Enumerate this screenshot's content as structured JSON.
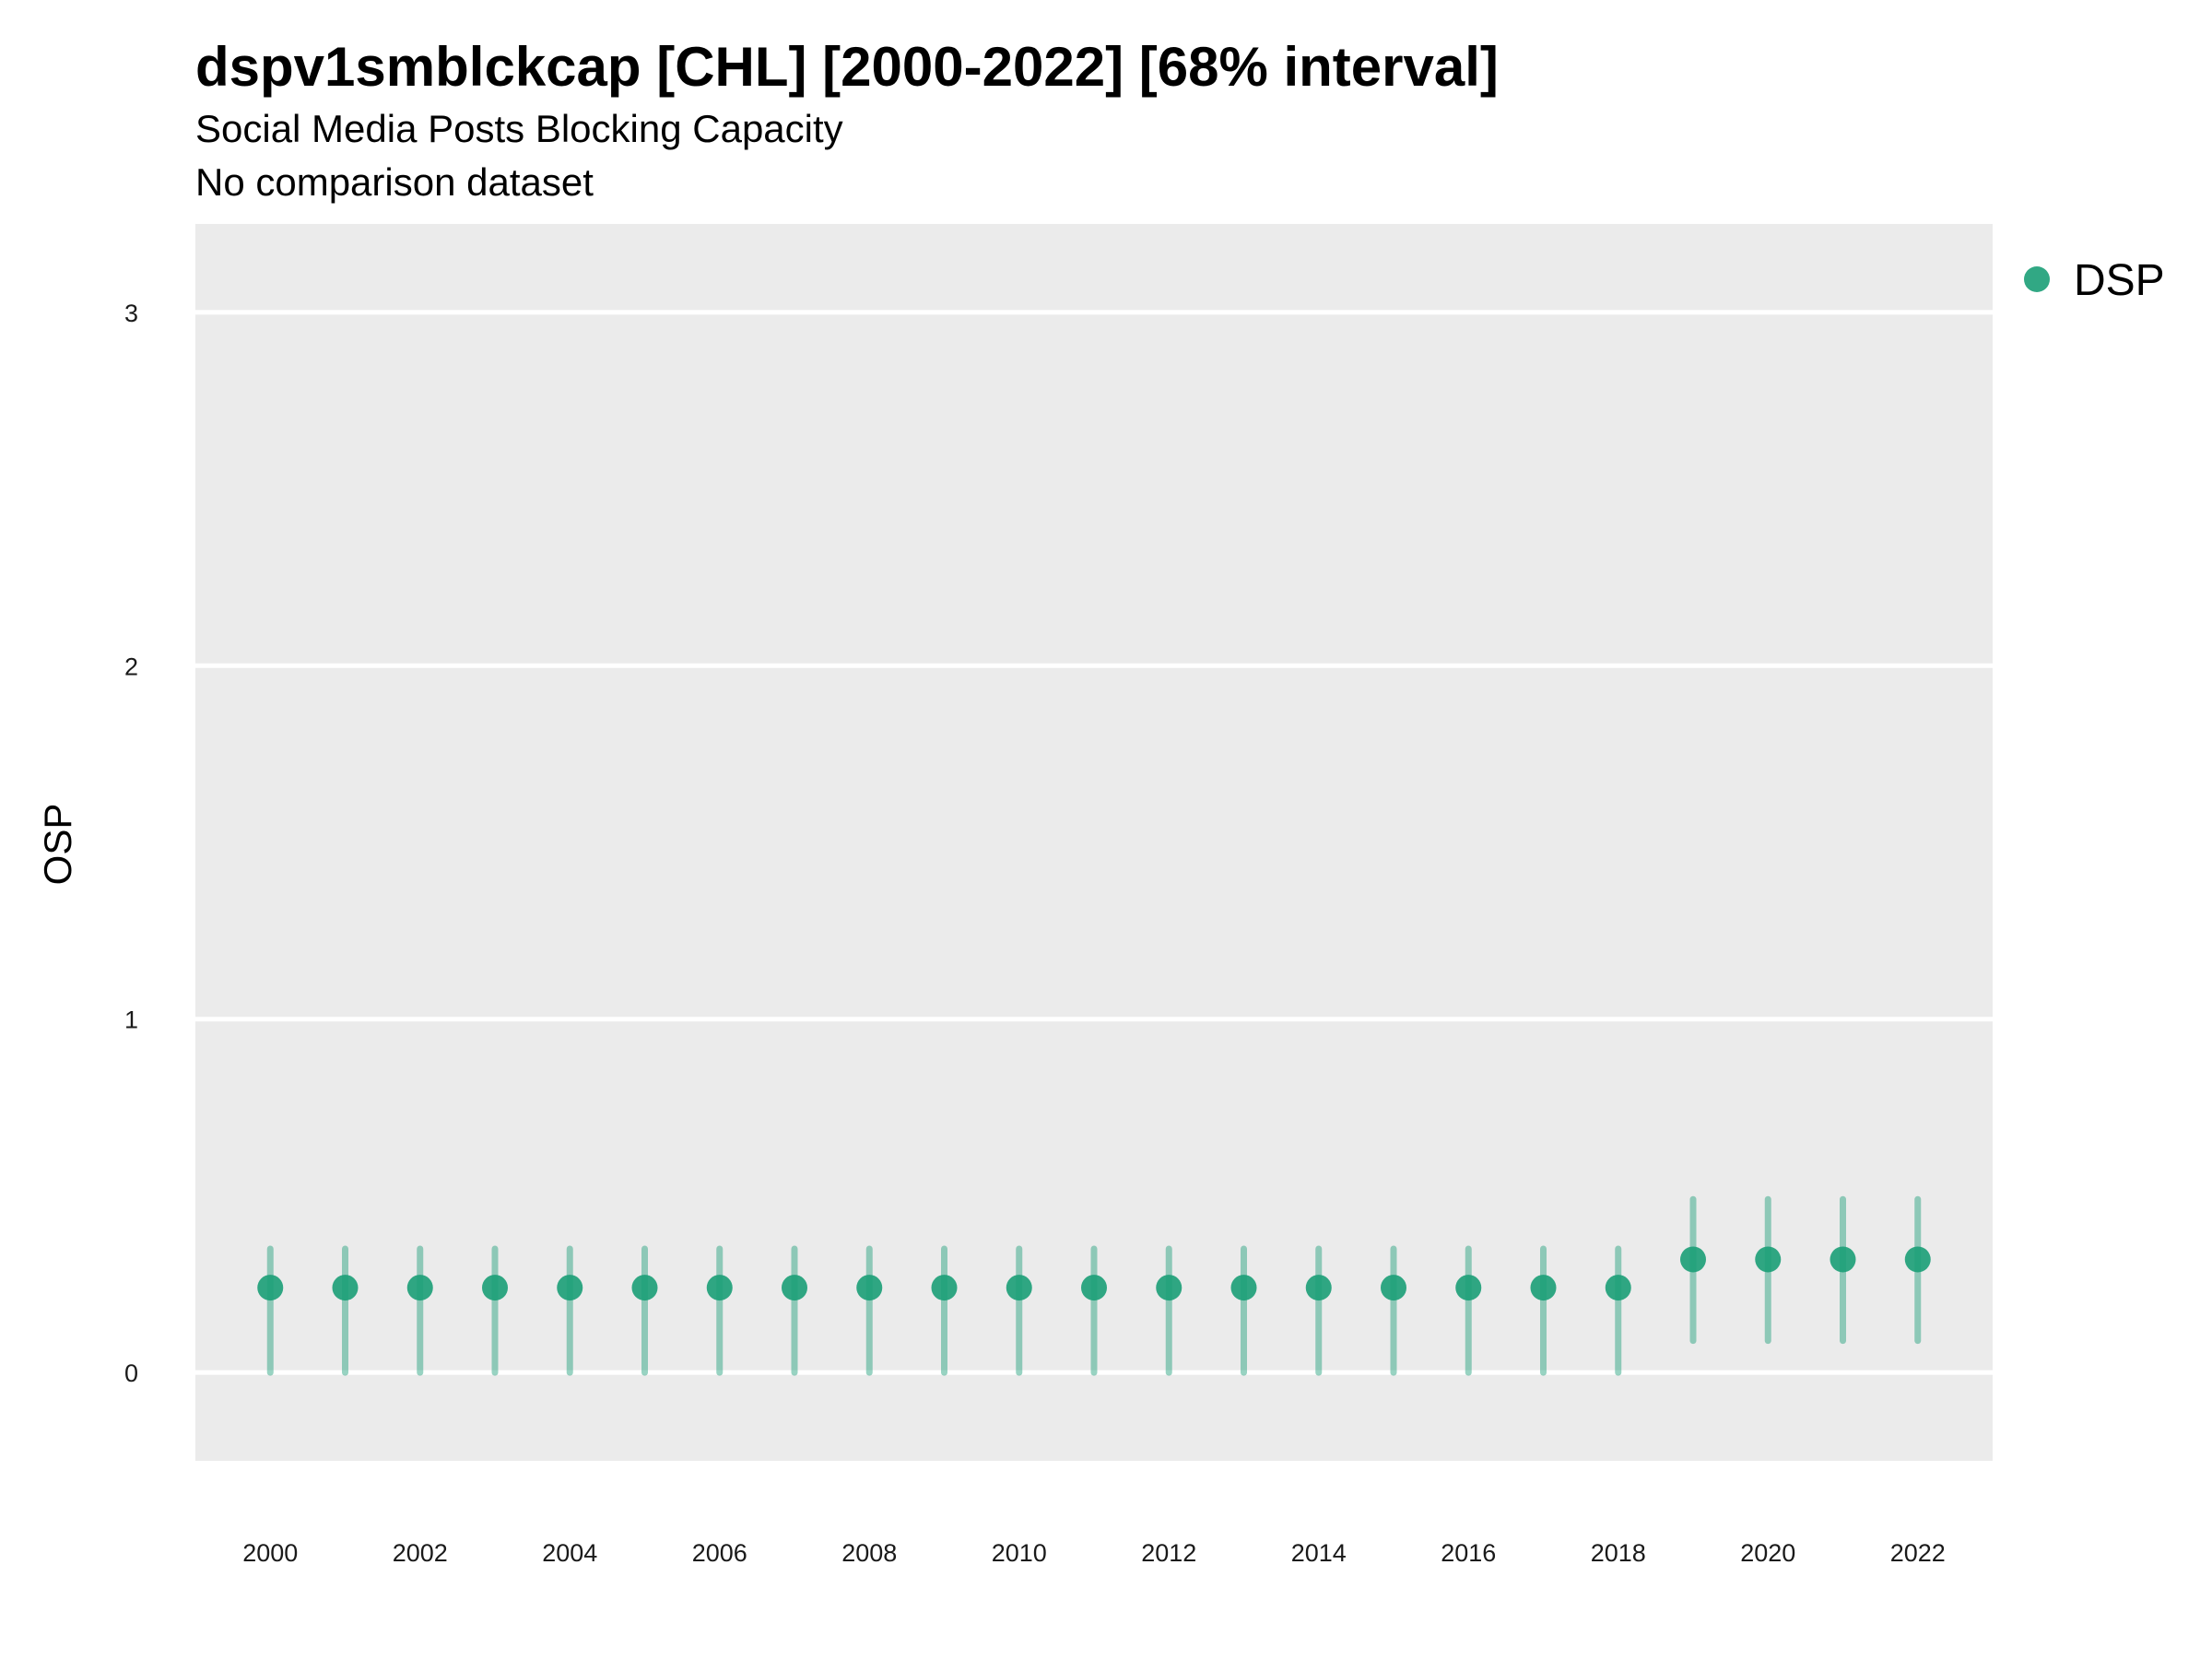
{
  "header": {
    "title": "dspv1smblckcap [CHL] [2000-2022] [68% interval]",
    "subtitle": "Social Media Posts Blocking Capacity",
    "caption": "No comparison dataset"
  },
  "colors": {
    "series": "#1b9e77",
    "panel_background": "#ebebeb",
    "grid": "#ffffff"
  },
  "chart_data": {
    "type": "scatter",
    "variant": "point-range",
    "title": "dspv1smblckcap [CHL] [2000-2022] [68% interval]",
    "xlabel": "",
    "ylabel": "OSP",
    "xlim": [
      1999.0,
      2023.0
    ],
    "ylim": [
      -0.25,
      3.25
    ],
    "x_ticks": [
      2000,
      2002,
      2004,
      2006,
      2008,
      2010,
      2012,
      2014,
      2016,
      2018,
      2020,
      2022
    ],
    "y_ticks": [
      0,
      1,
      2,
      3
    ],
    "grid": "horizontal major only",
    "legend_position": "right",
    "series": [
      {
        "name": "DSP",
        "x": [
          2000,
          2001,
          2002,
          2003,
          2004,
          2005,
          2006,
          2007,
          2008,
          2009,
          2010,
          2011,
          2012,
          2013,
          2014,
          2015,
          2016,
          2017,
          2018,
          2019,
          2020,
          2021,
          2022
        ],
        "y": [
          0.24,
          0.24,
          0.24,
          0.24,
          0.24,
          0.24,
          0.24,
          0.24,
          0.24,
          0.24,
          0.24,
          0.24,
          0.24,
          0.24,
          0.24,
          0.24,
          0.24,
          0.24,
          0.24,
          0.32,
          0.32,
          0.32,
          0.32
        ],
        "lower": [
          0.0,
          0.0,
          0.0,
          0.0,
          0.0,
          0.0,
          0.0,
          0.0,
          0.0,
          0.0,
          0.0,
          0.0,
          0.0,
          0.0,
          0.0,
          0.0,
          0.0,
          0.0,
          0.0,
          0.09,
          0.09,
          0.09,
          0.09
        ],
        "upper": [
          0.35,
          0.35,
          0.35,
          0.35,
          0.35,
          0.35,
          0.35,
          0.35,
          0.35,
          0.35,
          0.35,
          0.35,
          0.35,
          0.35,
          0.35,
          0.35,
          0.35,
          0.35,
          0.35,
          0.49,
          0.49,
          0.49,
          0.49
        ]
      }
    ]
  }
}
